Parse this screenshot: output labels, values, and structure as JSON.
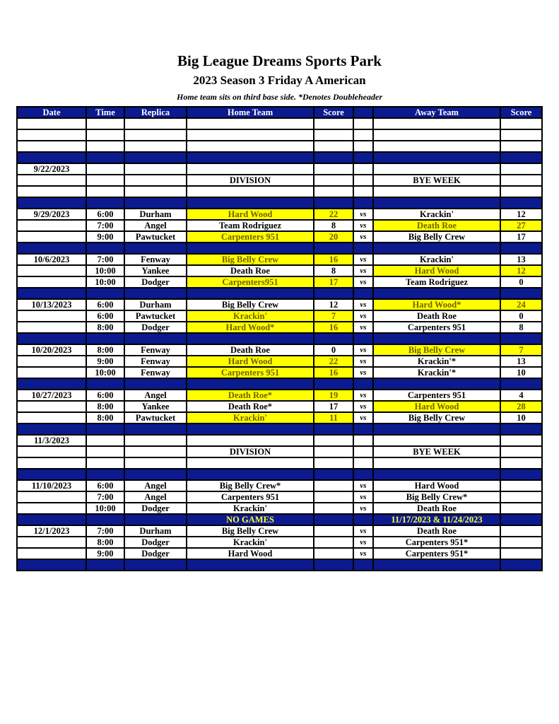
{
  "header": {
    "title": "Big League Dreams Sports Park",
    "subtitle": "2023 Season 3 Friday A American",
    "note": "Home team sits on third base side.  *Denotes Doubleheader"
  },
  "colors": {
    "header_blue": "#0b1a8e",
    "winner_highlight": "#ffff00",
    "note_text": "#ffff33"
  },
  "columns": [
    "Date",
    "Time",
    "Replica",
    "Home Team",
    "Score",
    "",
    "Away Team",
    "Score"
  ],
  "rows": [
    {
      "type": "blank"
    },
    {
      "type": "blank"
    },
    {
      "type": "blank"
    },
    {
      "type": "sep"
    },
    {
      "type": "game",
      "date": "9/22/2023"
    },
    {
      "type": "game",
      "home": "DIVISION",
      "away": "BYE WEEK"
    },
    {
      "type": "blank"
    },
    {
      "type": "sep"
    },
    {
      "type": "game",
      "date": "9/29/2023",
      "time": "6:00",
      "replica": "Durham",
      "home": "Hard Wood",
      "hs": "22",
      "vs": "vs",
      "away": "Krackin'",
      "as": "12",
      "win": "home"
    },
    {
      "type": "game",
      "time": "7:00",
      "replica": "Angel",
      "home": "Team Rodriguez",
      "hs": "8",
      "vs": "vs",
      "away": "Death Roe",
      "as": "27",
      "win": "away"
    },
    {
      "type": "game",
      "time": "9:00",
      "replica": "Pawtucket",
      "home": "Carpenters 951",
      "hs": "20",
      "vs": "vs",
      "away": "Big Belly Crew",
      "as": "17",
      "win": "home"
    },
    {
      "type": "sep"
    },
    {
      "type": "game",
      "date": "10/6/2023",
      "time": "7:00",
      "replica": "Fenway",
      "home": "Big Belly Crew",
      "hs": "16",
      "vs": "vs",
      "away": "Krackin'",
      "as": "13",
      "win": "home"
    },
    {
      "type": "game",
      "time": "10:00",
      "replica": "Yankee",
      "home": "Death Roe",
      "hs": "8",
      "vs": "vs",
      "away": "Hard Wood",
      "as": "12",
      "win": "away"
    },
    {
      "type": "game",
      "time": "10:00",
      "replica": "Dodger",
      "home": "Carpenters951",
      "hs": "17",
      "vs": "vs",
      "away": "Team Rodriguez",
      "as": "0",
      "win": "home"
    },
    {
      "type": "sep"
    },
    {
      "type": "game",
      "date": "10/13/2023",
      "time": "6:00",
      "replica": "Durham",
      "home": "Big Belly Crew",
      "hs": "12",
      "vs": "vs",
      "away": "Hard Wood*",
      "as": "24",
      "win": "away"
    },
    {
      "type": "game",
      "time": "6:00",
      "replica": "Pawtucket",
      "home": "Krackin'",
      "hs": "7",
      "vs": "vs",
      "away": "Death Roe",
      "as": "0",
      "win": "home"
    },
    {
      "type": "game",
      "time": "8:00",
      "replica": "Dodger",
      "home": "Hard Wood*",
      "hs": "16",
      "vs": "vs",
      "away": "Carpenters 951",
      "as": "8",
      "win": "home"
    },
    {
      "type": "sep"
    },
    {
      "type": "game",
      "date": "10/20/2023",
      "time": "8:00",
      "replica": "Fenway",
      "home": "Death Roe",
      "hs": "0",
      "vs": "vs",
      "away": "Big Belly Crew",
      "as": "7",
      "win": "away"
    },
    {
      "type": "game",
      "time": "9:00",
      "replica": "Fenway",
      "home": "Hard Wood",
      "hs": "22",
      "vs": "vs",
      "away": "Krackin'*",
      "as": "13",
      "win": "home"
    },
    {
      "type": "game",
      "time": "10:00",
      "replica": "Fenway",
      "home": "Carpenters 951",
      "hs": "16",
      "vs": "vs",
      "away": "Krackin'*",
      "as": "10",
      "win": "home"
    },
    {
      "type": "sep"
    },
    {
      "type": "game",
      "date": "10/27/2023",
      "time": "6:00",
      "replica": "Angel",
      "home": "Death Roe*",
      "hs": "19",
      "vs": "vs",
      "away": "Carpenters 951",
      "as": "4",
      "win": "home"
    },
    {
      "type": "game",
      "time": "8:00",
      "replica": "Yankee",
      "home": "Death Roe*",
      "hs": "17",
      "vs": "vs",
      "away": "Hard Wood",
      "as": "28",
      "win": "away"
    },
    {
      "type": "game",
      "time": "8:00",
      "replica": "Pawtucket",
      "home": "Krackin'",
      "hs": "11",
      "vs": "vs",
      "away": "Big Belly Crew",
      "as": "10",
      "win": "home"
    },
    {
      "type": "sep"
    },
    {
      "type": "game",
      "date": "11/3/2023"
    },
    {
      "type": "game",
      "home": "DIVISION",
      "away": "BYE WEEK"
    },
    {
      "type": "blank"
    },
    {
      "type": "sep"
    },
    {
      "type": "game",
      "date": "11/10/2023",
      "time": "6:00",
      "replica": "Angel",
      "home": "Big Belly Crew*",
      "vs": "vs",
      "away": "Hard Wood"
    },
    {
      "type": "game",
      "time": "7:00",
      "replica": "Angel",
      "home": "Carpenters 951",
      "vs": "vs",
      "away": "Big Belly Crew*"
    },
    {
      "type": "game",
      "time": "10:00",
      "replica": "Dodger",
      "home": "Krackin'",
      "vs": "vs",
      "away": "Death Roe"
    },
    {
      "type": "sep",
      "home": "NO GAMES",
      "away": "11/17/2023 & 11/24/2023"
    },
    {
      "type": "game",
      "date": "12/1/2023",
      "time": "7:00",
      "replica": "Durham",
      "home": "Big Belly Crew",
      "vs": "vs",
      "away": "Death Roe"
    },
    {
      "type": "game",
      "time": "8:00",
      "replica": "Dodger",
      "home": "Krackin'",
      "vs": "vs",
      "away": "Carpenters 951*"
    },
    {
      "type": "game",
      "time": "9:00",
      "replica": "Dodger",
      "home": "Hard Wood",
      "vs": "vs",
      "away": "Carpenters 951*"
    },
    {
      "type": "sep"
    }
  ]
}
